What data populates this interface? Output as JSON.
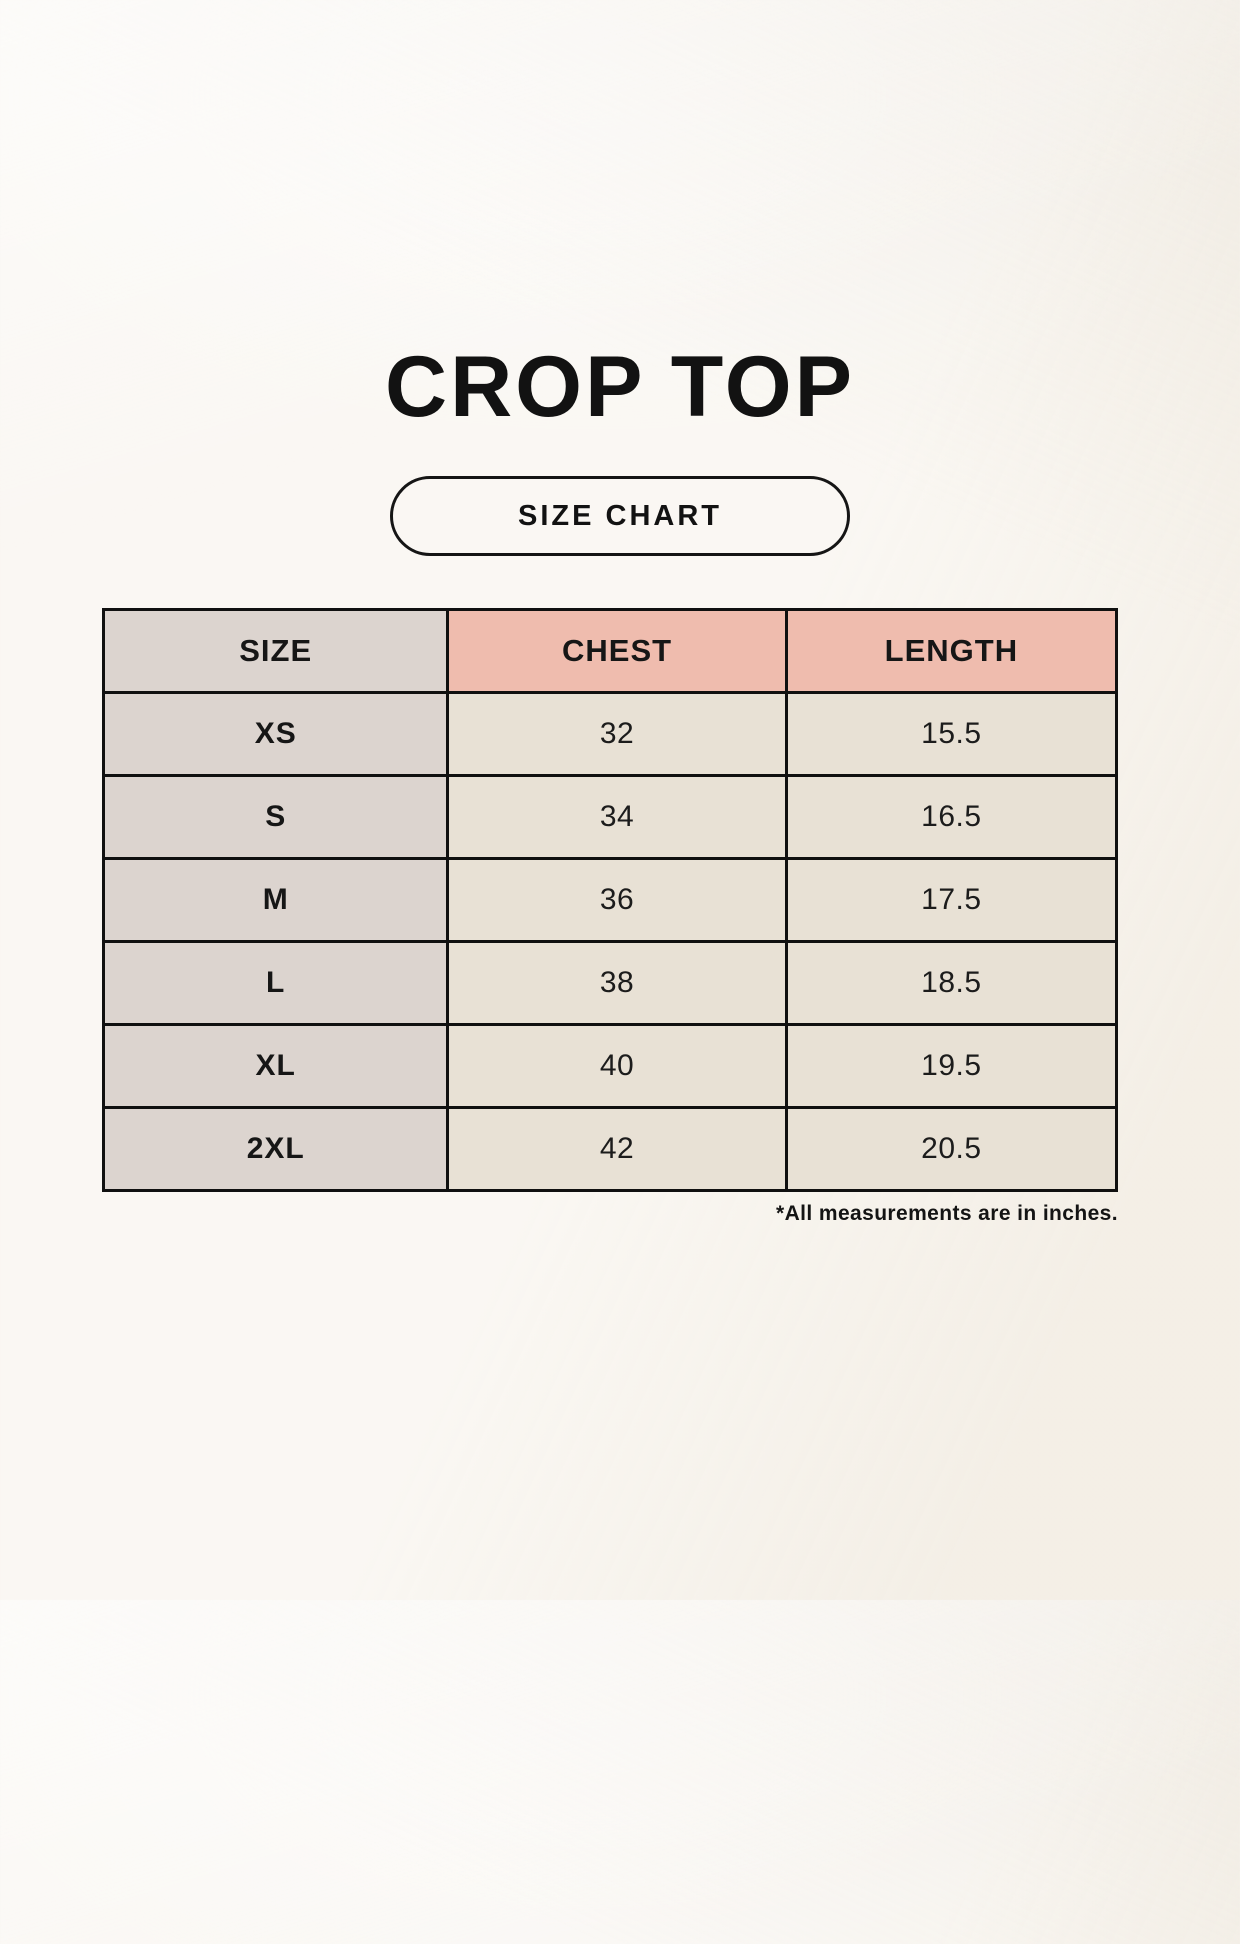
{
  "page": {
    "title": "CROP TOP",
    "size_chart_label": "SIZE CHART",
    "footnote": "*All measurements are in inches."
  },
  "table": {
    "columns": [
      "SIZE",
      "CHEST",
      "LENGTH"
    ],
    "rows": [
      {
        "size": "XS",
        "chest": "32",
        "length": "15.5"
      },
      {
        "size": "S",
        "chest": "34",
        "length": "16.5"
      },
      {
        "size": "M",
        "chest": "36",
        "length": "17.5"
      },
      {
        "size": "L",
        "chest": "38",
        "length": "18.5"
      },
      {
        "size": "XL",
        "chest": "40",
        "length": "19.5"
      },
      {
        "size": "2XL",
        "chest": "42",
        "length": "20.5"
      }
    ]
  },
  "colors": {
    "background": "#f7f3ec",
    "header_pink": "#efbcae",
    "size_column": "#dcd4cf",
    "cell_cream": "#e8e1d5",
    "border": "#101010",
    "text": "#161616"
  }
}
